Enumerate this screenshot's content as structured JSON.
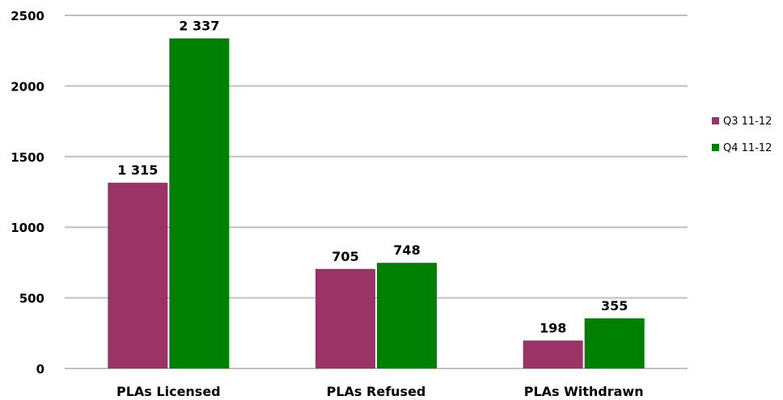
{
  "chart_data": {
    "type": "bar",
    "categories": [
      "PLAs Licensed",
      "PLAs Refused",
      "PLAs Withdrawn"
    ],
    "series": [
      {
        "name": "Q3 11-12",
        "values": [
          1315,
          705,
          198
        ],
        "labels": [
          "1 315",
          "705",
          "198"
        ],
        "color": "#993366"
      },
      {
        "name": "Q4 11-12",
        "values": [
          2337,
          748,
          355
        ],
        "labels": [
          "2 337",
          "748",
          "355"
        ],
        "color": "#008000"
      }
    ],
    "ylim": [
      0,
      2500
    ],
    "yticks": [
      0,
      500,
      1000,
      1500,
      2000,
      2500
    ],
    "grid": true,
    "legend_position": "right"
  }
}
